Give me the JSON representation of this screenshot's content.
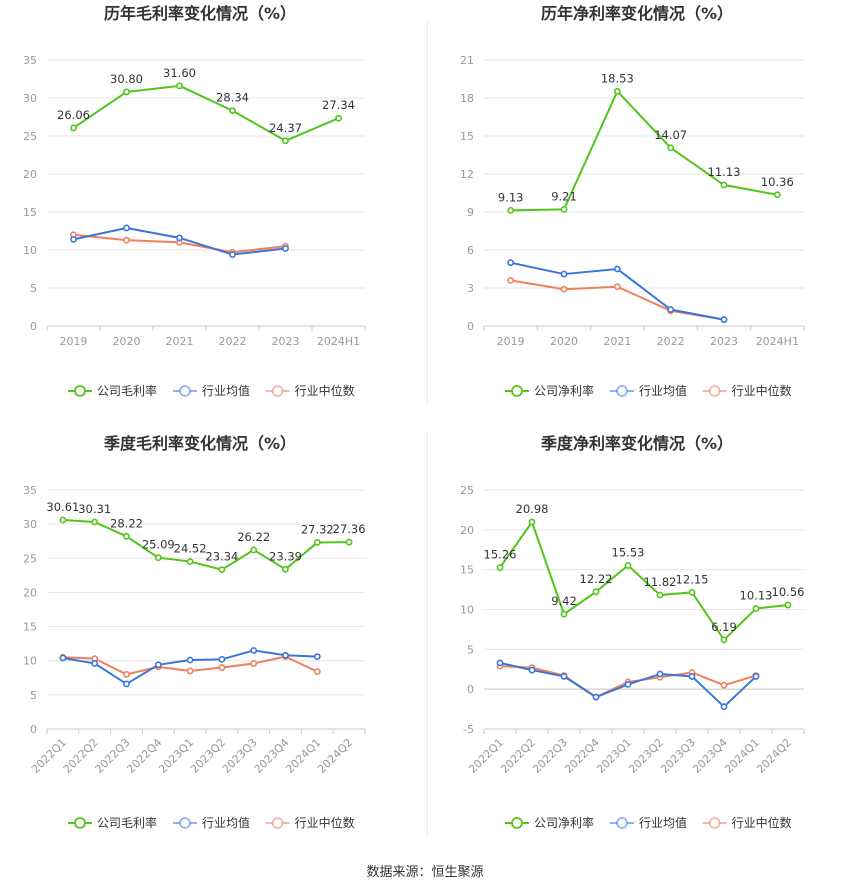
{
  "source": "数据来源：恒生聚源",
  "colors": {
    "company": "#52c41a",
    "industry_avg": "#3a75dc",
    "industry_median": "#f07f5e"
  },
  "chart_data": [
    {
      "type": "line",
      "title": "历年毛利率变化情况（%）",
      "categories": [
        "2019",
        "2020",
        "2021",
        "2022",
        "2023",
        "2024H1"
      ],
      "ylim": [
        0,
        35
      ],
      "yticks": [
        0,
        5,
        10,
        15,
        20,
        25,
        30,
        35
      ],
      "ytick_labels": [
        "0",
        "5",
        "10",
        "15",
        "20",
        "25",
        "30",
        "35"
      ],
      "rotate_x": false,
      "grid": true,
      "legend_position": "bottom",
      "series": [
        {
          "name": "公司毛利率",
          "key": "company",
          "values": [
            26.06,
            30.8,
            31.6,
            28.34,
            24.37,
            27.34
          ],
          "labels": [
            "26.06",
            "30.80",
            "31.60",
            "28.34",
            "24.37",
            "27.34"
          ]
        },
        {
          "name": "行业均值",
          "key": "industry_avg",
          "values": [
            11.4,
            12.9,
            11.6,
            9.4,
            10.2,
            null
          ]
        },
        {
          "name": "行业中位数",
          "key": "industry_median",
          "values": [
            12.0,
            11.3,
            11.0,
            9.7,
            10.5,
            null
          ]
        }
      ]
    },
    {
      "type": "line",
      "title": "历年净利率变化情况（%）",
      "categories": [
        "2019",
        "2020",
        "2021",
        "2022",
        "2023",
        "2024H1"
      ],
      "ylim": [
        0,
        21
      ],
      "yticks": [
        0,
        3,
        6,
        9,
        12,
        15,
        18,
        21
      ],
      "ytick_labels": [
        "0",
        "3",
        "6",
        "9",
        "12",
        "15",
        "18",
        "21"
      ],
      "rotate_x": false,
      "grid": true,
      "legend_position": "bottom",
      "series": [
        {
          "name": "公司净利率",
          "key": "company",
          "values": [
            9.13,
            9.21,
            18.53,
            14.07,
            11.13,
            10.36
          ],
          "labels": [
            "9.13",
            "9.21",
            "18.53",
            "14.07",
            "11.13",
            "10.36"
          ]
        },
        {
          "name": "行业均值",
          "key": "industry_avg",
          "values": [
            5.0,
            4.1,
            4.5,
            1.3,
            0.5,
            null
          ]
        },
        {
          "name": "行业中位数",
          "key": "industry_median",
          "values": [
            3.6,
            2.9,
            3.1,
            1.2,
            0.5,
            null
          ]
        }
      ]
    },
    {
      "type": "line",
      "title": "季度毛利率变化情况（%）",
      "categories": [
        "2022Q1",
        "2022Q2",
        "2022Q3",
        "2022Q4",
        "2023Q1",
        "2023Q2",
        "2023Q3",
        "2023Q4",
        "2024Q1",
        "2024Q2"
      ],
      "ylim": [
        0,
        35
      ],
      "yticks": [
        0,
        5,
        10,
        15,
        20,
        25,
        30,
        35
      ],
      "ytick_labels": [
        "0",
        "5",
        "10",
        "15",
        "20",
        "25",
        "30",
        "35"
      ],
      "rotate_x": true,
      "grid": true,
      "legend_position": "bottom",
      "series": [
        {
          "name": "公司毛利率",
          "key": "company",
          "values": [
            30.61,
            30.31,
            28.22,
            25.09,
            24.52,
            23.34,
            26.22,
            23.39,
            27.32,
            27.36
          ],
          "labels": [
            "30.61",
            "30.31",
            "28.22",
            "25.09",
            "24.52",
            "23.34",
            "26.22",
            "23.39",
            "27.32",
            "27.36"
          ]
        },
        {
          "name": "行业均值",
          "key": "industry_avg",
          "values": [
            10.4,
            9.6,
            6.6,
            9.4,
            10.1,
            10.2,
            11.5,
            10.8,
            10.6,
            null
          ]
        },
        {
          "name": "行业中位数",
          "key": "industry_median",
          "values": [
            10.5,
            10.3,
            8.0,
            9.1,
            8.5,
            9.0,
            9.6,
            10.6,
            8.4,
            null
          ]
        }
      ]
    },
    {
      "type": "line",
      "title": "季度净利率变化情况（%）",
      "categories": [
        "2022Q1",
        "2022Q2",
        "2022Q3",
        "2022Q4",
        "2023Q1",
        "2023Q2",
        "2023Q3",
        "2023Q4",
        "2024Q1",
        "2024Q2"
      ],
      "ylim": [
        -5,
        25
      ],
      "yticks": [
        -5,
        0,
        5,
        10,
        15,
        20,
        25
      ],
      "ytick_labels": [
        "-5",
        "0",
        "5",
        "10",
        "15",
        "20",
        "25"
      ],
      "rotate_x": true,
      "grid": true,
      "legend_position": "bottom",
      "series": [
        {
          "name": "公司净利率",
          "key": "company",
          "values": [
            15.26,
            20.98,
            9.42,
            12.22,
            15.53,
            11.82,
            12.15,
            6.19,
            10.13,
            10.56
          ],
          "labels": [
            "15.26",
            "20.98",
            "9.42",
            "12.22",
            "15.53",
            "11.82",
            "12.15",
            "6.19",
            "10.13",
            "10.56"
          ]
        },
        {
          "name": "行业均值",
          "key": "industry_avg",
          "values": [
            3.3,
            2.4,
            1.6,
            -1.0,
            0.6,
            1.9,
            1.6,
            -2.2,
            1.6,
            null
          ]
        },
        {
          "name": "行业中位数",
          "key": "industry_median",
          "values": [
            2.9,
            2.7,
            1.7,
            -1.0,
            0.9,
            1.5,
            2.1,
            0.5,
            1.7,
            null
          ]
        }
      ]
    }
  ]
}
